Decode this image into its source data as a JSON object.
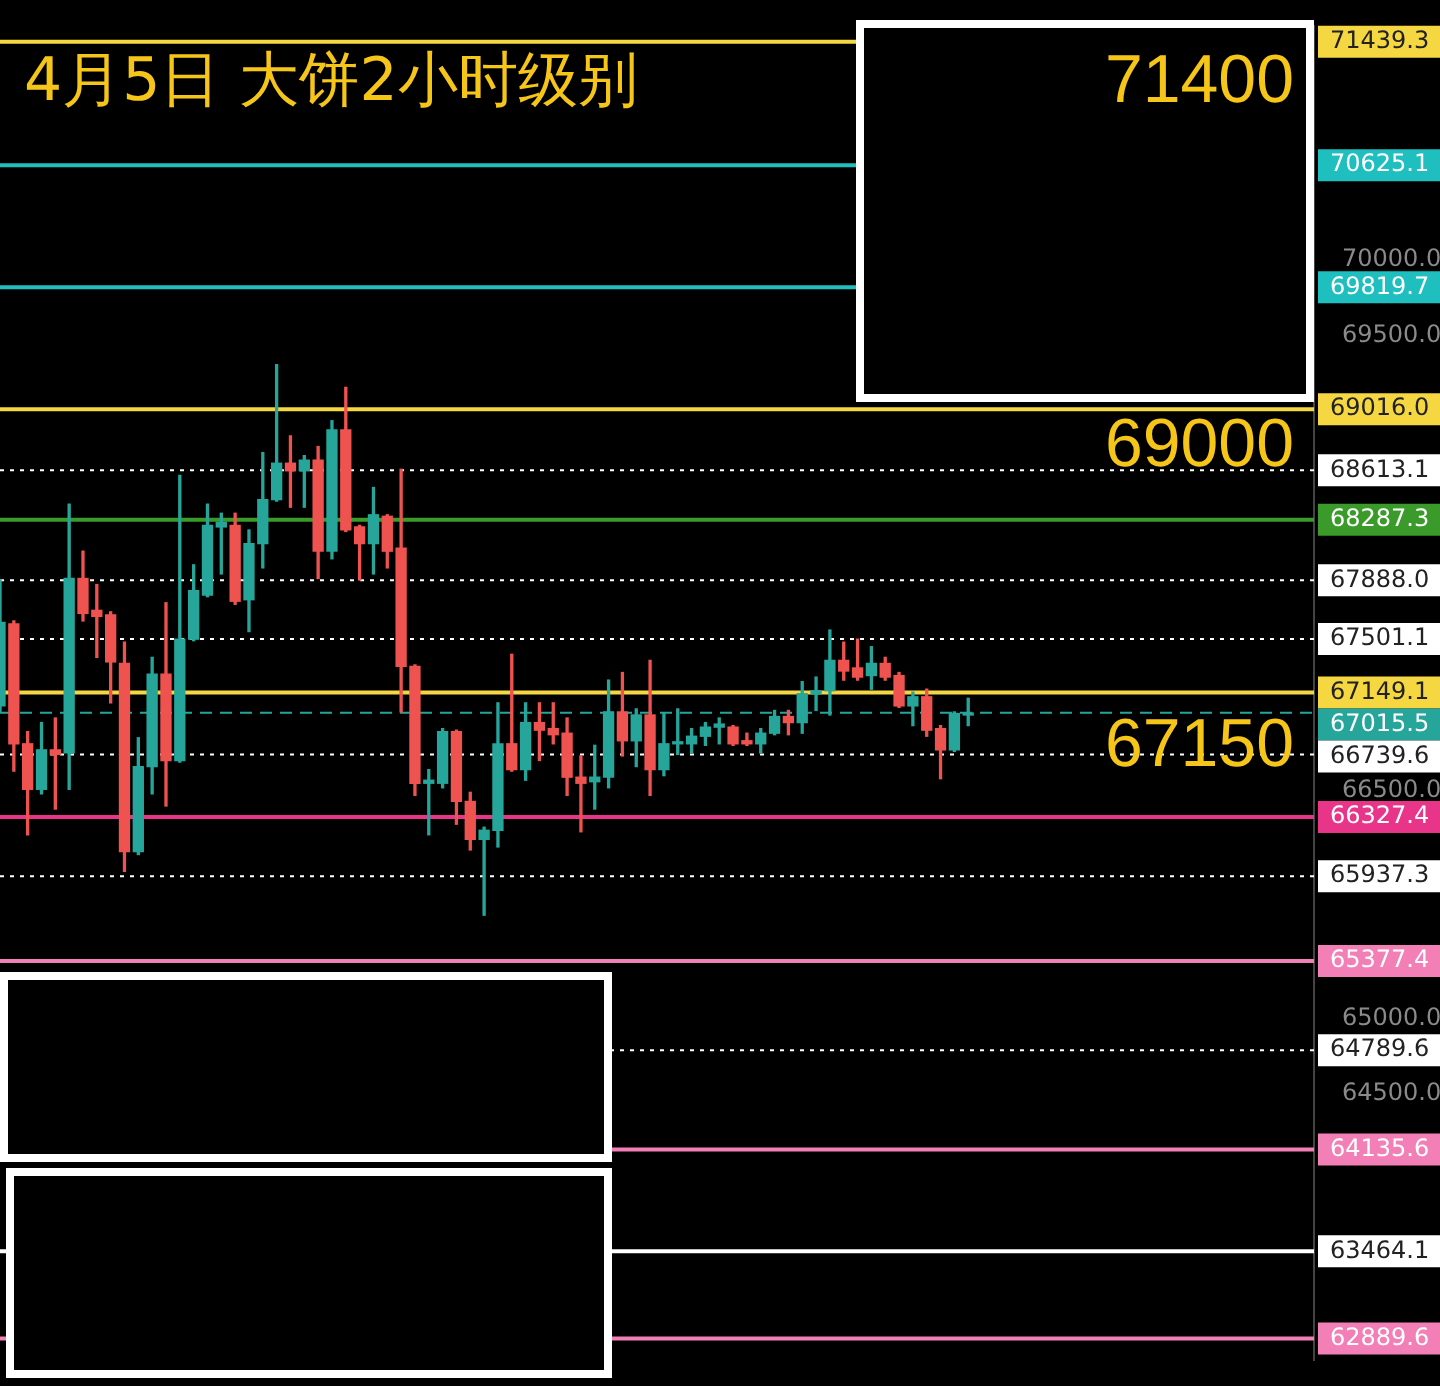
{
  "chart_data": {
    "type": "candlestick",
    "title": "4月5日 大饼2小时级别",
    "categories": [
      null,
      null,
      null,
      null,
      null,
      null,
      null,
      null,
      null,
      null,
      null,
      null,
      null,
      null,
      null,
      null,
      null,
      null,
      null,
      null,
      null,
      null,
      null,
      null,
      null,
      null,
      null,
      null,
      null,
      null,
      null,
      null,
      null,
      null,
      null,
      null,
      null,
      null,
      null,
      null,
      null,
      null,
      null,
      null,
      null,
      null,
      null,
      null,
      null,
      null,
      null,
      null,
      null,
      null,
      null,
      null,
      null,
      null,
      null,
      null,
      null,
      null,
      null,
      null,
      null,
      null,
      null,
      null,
      null,
      null,
      null,
      null,
      null,
      null,
      null,
      null,
      null,
      null,
      null,
      null,
      null,
      null,
      null,
      null,
      null,
      null,
      null,
      null,
      null,
      null,
      null,
      null,
      null,
      null,
      null,
      null
    ],
    "ohlc": [
      [
        67060,
        67890,
        67020,
        67610
      ],
      [
        67600,
        67620,
        66630,
        66810
      ],
      [
        66810,
        66890,
        66210,
        66510
      ],
      [
        66510,
        66950,
        66480,
        66770
      ],
      [
        66770,
        66980,
        66380,
        66740
      ],
      [
        66750,
        68390,
        66510,
        67900
      ],
      [
        67900,
        68080,
        67620,
        67670
      ],
      [
        67690,
        67860,
        67380,
        67650
      ],
      [
        67660,
        67680,
        67080,
        67350
      ],
      [
        67340,
        67480,
        65970,
        66100
      ],
      [
        66100,
        66850,
        66080,
        66660
      ],
      [
        66660,
        67380,
        66480,
        67270
      ],
      [
        67270,
        67740,
        66400,
        66700
      ],
      [
        66700,
        68580,
        66690,
        67500
      ],
      [
        67500,
        67990,
        67490,
        67820
      ],
      [
        67790,
        68390,
        67780,
        68250
      ],
      [
        68240,
        68330,
        67930,
        68270
      ],
      [
        68250,
        68330,
        67730,
        67750
      ],
      [
        67760,
        68220,
        67550,
        68130
      ],
      [
        68130,
        68730,
        67970,
        68420
      ],
      [
        68420,
        69310,
        68410,
        68660
      ],
      [
        68660,
        68840,
        68370,
        68610
      ],
      [
        68610,
        68710,
        68370,
        68680
      ],
      [
        68680,
        68770,
        67900,
        68080
      ],
      [
        68080,
        68940,
        68030,
        68880
      ],
      [
        68880,
        69160,
        68210,
        68220
      ],
      [
        68240,
        68250,
        67890,
        68130
      ],
      [
        68130,
        68500,
        67930,
        68320
      ],
      [
        68310,
        68320,
        67970,
        68080
      ],
      [
        68100,
        68620,
        67020,
        67320
      ],
      [
        67320,
        67330,
        66470,
        66550
      ],
      [
        66550,
        66640,
        66210,
        66570
      ],
      [
        66550,
        66910,
        66520,
        66890
      ],
      [
        66890,
        66900,
        66280,
        66430
      ],
      [
        66430,
        66490,
        66110,
        66180
      ],
      [
        66180,
        66260,
        65680,
        66240
      ],
      [
        66240,
        67080,
        66130,
        66810
      ],
      [
        66810,
        67400,
        66630,
        66640
      ],
      [
        66640,
        67080,
        66570,
        66950
      ],
      [
        66950,
        67080,
        66700,
        66900
      ],
      [
        66910,
        67080,
        66810,
        66870
      ],
      [
        66880,
        66980,
        66470,
        66590
      ],
      [
        66590,
        66730,
        66230,
        66550
      ],
      [
        66560,
        66800,
        66380,
        66590
      ],
      [
        66590,
        67230,
        66520,
        67020
      ],
      [
        67020,
        67280,
        66730,
        66830
      ],
      [
        66830,
        67040,
        66660,
        67000
      ],
      [
        67000,
        67360,
        66470,
        66640
      ],
      [
        66640,
        67010,
        66600,
        66810
      ],
      [
        66810,
        67040,
        66740,
        66820
      ],
      [
        66810,
        66910,
        66750,
        66860
      ],
      [
        66860,
        66950,
        66800,
        66920
      ],
      [
        66920,
        66980,
        66810,
        66940
      ],
      [
        66920,
        66930,
        66800,
        66810
      ],
      [
        66830,
        66880,
        66800,
        66810
      ],
      [
        66810,
        66910,
        66750,
        66880
      ],
      [
        66880,
        67030,
        66870,
        66990
      ],
      [
        66990,
        67030,
        66870,
        66950
      ],
      [
        66950,
        67220,
        66880,
        67140
      ],
      [
        67140,
        67250,
        67030,
        67160
      ],
      [
        67160,
        67560,
        67000,
        67360
      ],
      [
        67360,
        67480,
        67230,
        67290
      ],
      [
        67310,
        67500,
        67230,
        67250
      ],
      [
        67260,
        67450,
        67170,
        67340
      ],
      [
        67340,
        67380,
        67230,
        67250
      ],
      [
        67260,
        67280,
        67050,
        67060
      ],
      [
        67060,
        67150,
        66930,
        67120
      ],
      [
        67120,
        67170,
        66860,
        66900
      ],
      [
        66910,
        66930,
        66580,
        66770
      ],
      [
        66770,
        67020,
        66760,
        67010
      ],
      [
        67000,
        67110,
        66930,
        67010
      ],
      null,
      null,
      null,
      null,
      null,
      null,
      null,
      null,
      null,
      null,
      null,
      null,
      null,
      null,
      null,
      null,
      null,
      null,
      null,
      null,
      null,
      null,
      null,
      null,
      null
    ],
    "colors": [
      "#26a69a",
      "#ef5350",
      "#ef5350",
      "#26a69a",
      "#ef5350",
      "#26a69a",
      "#ef5350",
      "#ef5350",
      "#ef5350",
      "#ef5350",
      "#26a69a",
      "#26a69a",
      "#ef5350",
      "#26a69a",
      "#26a69a",
      "#26a69a",
      "#26a69a",
      "#ef5350",
      "#26a69a",
      "#26a69a",
      "#26a69a",
      "#ef5350",
      "#26a69a",
      "#ef5350",
      "#26a69a",
      "#ef5350",
      "#ef5350",
      "#26a69a",
      "#ef5350",
      "#ef5350",
      "#ef5350",
      "#26a69a",
      "#26a69a",
      "#ef5350",
      "#ef5350",
      "#26a69a",
      "#26a69a",
      "#ef5350",
      "#26a69a",
      "#ef5350",
      "#ef5350",
      "#ef5350",
      "#ef5350",
      "#26a69a",
      "#26a69a",
      "#ef5350",
      "#26a69a",
      "#ef5350",
      "#26a69a",
      "#26a69a",
      "#26a69a",
      "#26a69a",
      "#26a69a",
      "#ef5350",
      "#ef5350",
      "#26a69a",
      "#26a69a",
      "#ef5350",
      "#26a69a",
      "#26a69a",
      "#26a69a",
      "#ef5350",
      "#ef5350",
      "#26a69a",
      "#ef5350",
      "#ef5350",
      "#26a69a",
      "#ef5350",
      "#ef5350",
      "#26a69a",
      "#26a69a",
      null,
      null,
      null,
      null,
      null,
      null,
      null,
      null,
      null,
      null,
      null,
      null,
      null,
      null,
      null,
      null,
      null,
      null,
      null,
      null,
      null,
      null,
      null,
      null,
      null
    ],
    "ylim": [
      62750,
      71540
    ],
    "yticks": [
      {
        "value": 64500,
        "label": "64500.0"
      },
      {
        "value": 65000,
        "label": "65000.0"
      },
      {
        "value": 66500,
        "label": "66500.0"
      },
      {
        "value": 69500,
        "label": "69500.0"
      },
      {
        "value": 70000,
        "label": "70000.0"
      }
    ],
    "tick_labels": "y",
    "ref_lines": [
      {
        "axis": "y",
        "value": 71439.3,
        "label": "71439.3",
        "color": "#f5d742",
        "line_style": "solid"
      },
      {
        "axis": "y",
        "value": 70625.1,
        "label": "70625.1",
        "color": "#1fbfbf",
        "line_style": "solid"
      },
      {
        "axis": "y",
        "value": 69819.7,
        "label": "69819.7",
        "color": "#1fbfbf",
        "line_style": "solid"
      },
      {
        "axis": "y",
        "value": 69016.0,
        "label": "69016.0",
        "color": "#f5d742",
        "line_style": "solid"
      },
      {
        "axis": "y",
        "value": 68613.1,
        "label": "68613.1",
        "color": "#ffffff",
        "line_style": "dotted"
      },
      {
        "axis": "y",
        "value": 68287.3,
        "label": "68287.3",
        "color": "#3a9a2a",
        "line_style": "solid"
      },
      {
        "axis": "y",
        "value": 67888.0,
        "label": "67888.0",
        "color": "#ffffff",
        "line_style": "dotted"
      },
      {
        "axis": "y",
        "value": 67501.1,
        "label": "67501.1",
        "color": "#ffffff",
        "line_style": "dotted"
      },
      {
        "axis": "y",
        "value": 67149.1,
        "label": "67149.1",
        "color": "#f5d742",
        "line_style": "solid"
      },
      {
        "axis": "y",
        "value": 67015.5,
        "label": "67015.5",
        "color": "#26a69a",
        "line_style": "dashed"
      },
      {
        "axis": "y",
        "value": 66739.6,
        "label": "66739.6",
        "color": "#ffffff",
        "line_style": "dotted"
      },
      {
        "axis": "y",
        "value": 66327.4,
        "label": "66327.4",
        "color": "#e8358a",
        "line_style": "solid"
      },
      {
        "axis": "y",
        "value": 65937.3,
        "label": "65937.3",
        "color": "#ffffff",
        "line_style": "dotted"
      },
      {
        "axis": "y",
        "value": 65377.4,
        "label": "65377.4",
        "color": "#f27fb5",
        "line_style": "solid"
      },
      {
        "axis": "y",
        "value": 64789.6,
        "label": "64789.6",
        "color": "#ffffff",
        "line_style": "dotted"
      },
      {
        "axis": "y",
        "value": 64135.6,
        "label": "64135.6",
        "color": "#f27fb5",
        "line_style": "solid"
      },
      {
        "axis": "y",
        "value": 63464.1,
        "label": "63464.1",
        "color": "#ffffff",
        "line_style": "solid"
      },
      {
        "axis": "y",
        "value": 62889.6,
        "label": "62889.6",
        "color": "#f27fb5",
        "line_style": "solid"
      }
    ],
    "annotations": [
      "71400",
      "69000",
      "67150"
    ]
  }
}
